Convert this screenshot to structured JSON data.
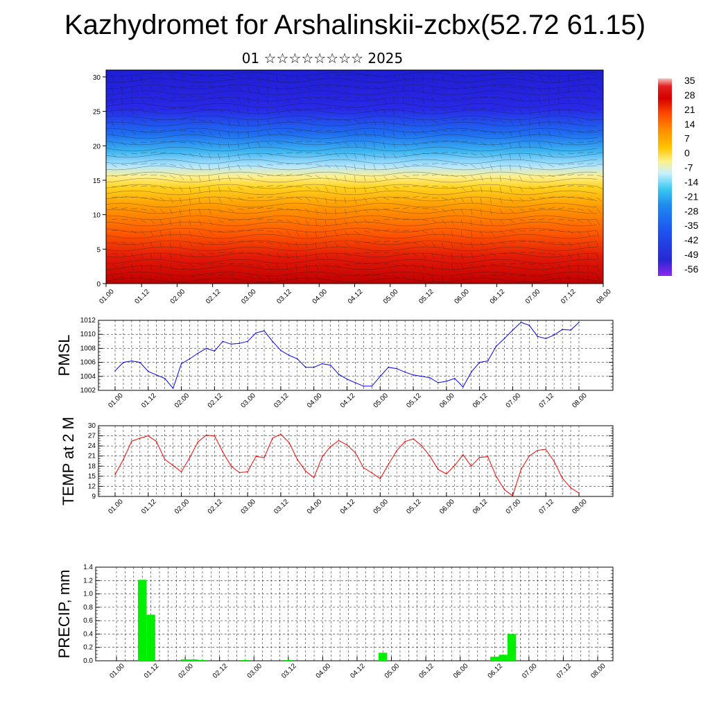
{
  "title": "Kazhydromet for Arshalinskii-zcbx(52.72 61.15)",
  "subtitle": "01 ☆☆☆☆☆☆☆☆ 2025",
  "chart_data": [
    {
      "type": "heatmap",
      "title": "",
      "y_ticks": [
        0,
        5,
        10,
        15,
        20,
        25,
        30
      ],
      "ylim": [
        0,
        31
      ],
      "x_ticks": [
        "01.00",
        "01.12",
        "02.00",
        "02.12",
        "03.00",
        "03.12",
        "04.00",
        "04.12",
        "05.00",
        "05.12",
        "06.00",
        "06.12",
        "07.00",
        "07.12",
        "08.00"
      ],
      "colorbar": {
        "labels": [
          "35",
          "28",
          "21",
          "14",
          "7",
          "0",
          "-7",
          "-14",
          "-21",
          "-28",
          "-35",
          "-42",
          "-49",
          "-56"
        ],
        "colors": [
          "#f5c6c6",
          "#e32020",
          "#d40000",
          "#ff4a00",
          "#ff8c00",
          "#ffc400",
          "#fff08c",
          "#c8f0ff",
          "#3cc8f0",
          "#1e8cf0",
          "#1e50f0",
          "#3232f0",
          "#2828d2",
          "#8c28f0"
        ]
      },
      "description_field": "temperature cross-section with wind barbs"
    },
    {
      "type": "line",
      "ylabel": "PMSL",
      "ylim": [
        1002,
        1012
      ],
      "y_ticks": [
        1002,
        1004,
        1006,
        1008,
        1010,
        1012
      ],
      "x_ticks": [
        "01.00",
        "01.12",
        "02.00",
        "02.12",
        "03.00",
        "03.12",
        "04.00",
        "04.12",
        "05.00",
        "05.12",
        "06.00",
        "06.12",
        "07.00",
        "07.12",
        "08.00"
      ],
      "series": [
        {
          "color": "#0000ff",
          "values": [
            1004.8,
            1006.0,
            1006.2,
            1006.0,
            1004.7,
            1004.2,
            1003.7,
            1002.3,
            1005.8,
            1006.5,
            1007.3,
            1008.0,
            1007.6,
            1009.0,
            1008.6,
            1008.7,
            1009.0,
            1010.2,
            1010.5,
            1009.0,
            1007.7,
            1007.0,
            1006.5,
            1005.3,
            1005.3,
            1005.8,
            1005.6,
            1004.3,
            1003.6,
            1003.1,
            1002.6,
            1002.6,
            1004.0,
            1005.3,
            1005.1,
            1004.6,
            1004.2,
            1004.0,
            1003.8,
            1003.1,
            1003.3,
            1003.7,
            1002.5,
            1004.6,
            1006.0,
            1006.2,
            1008.3,
            1009.4,
            1010.6,
            1011.7,
            1011.3,
            1009.7,
            1009.4,
            1009.9,
            1010.7,
            1010.6,
            1011.7
          ]
        }
      ]
    },
    {
      "type": "line",
      "ylabel": "TEMP at 2 M",
      "ylim": [
        9,
        30
      ],
      "y_ticks": [
        9,
        12,
        15,
        18,
        21,
        24,
        27,
        30
      ],
      "x_ticks": [
        "01.00",
        "01.12",
        "02.00",
        "02.12",
        "03.00",
        "03.12",
        "04.00",
        "04.12",
        "05.00",
        "05.12",
        "06.00",
        "06.12",
        "07.00",
        "07.12",
        "08.00"
      ],
      "series": [
        {
          "color": "#ff0000",
          "values": [
            15.5,
            20.0,
            25.4,
            26.3,
            27.0,
            25.3,
            20.0,
            18.2,
            16.3,
            20.5,
            25.2,
            27.2,
            27.0,
            22.2,
            18.0,
            16.1,
            16.3,
            20.9,
            20.5,
            26.3,
            27.5,
            25.0,
            20.0,
            16.5,
            14.6,
            20.8,
            23.8,
            25.6,
            24.3,
            22.0,
            17.5,
            16.0,
            14.3,
            18.5,
            22.6,
            25.3,
            26.1,
            24.1,
            21.0,
            17.0,
            15.7,
            18.2,
            21.4,
            18.0,
            20.6,
            20.8,
            15.0,
            11.0,
            9.2,
            17.0,
            21.0,
            22.7,
            23.0,
            19.4,
            14.4,
            11.6,
            10.0
          ]
        }
      ]
    },
    {
      "type": "bar",
      "ylabel": "PRECIP, mm",
      "ylim": [
        0,
        1.4
      ],
      "y_ticks": [
        "0.0",
        "0.2",
        "0.4",
        "0.6",
        "0.8",
        "1.0",
        "1.2",
        "1.4"
      ],
      "x_ticks": [
        "01.00",
        "01.12",
        "02.00",
        "02.12",
        "03.00",
        "03.12",
        "04.00",
        "04.12",
        "05.00",
        "05.12",
        "06.00",
        "06.12",
        "07.00",
        "07.12",
        "08.00"
      ],
      "bar_color": "#00ee00",
      "bars": [
        {
          "t": 3,
          "value": 1.21
        },
        {
          "t": 4,
          "value": 0.69
        },
        {
          "t": 8,
          "value": 0.02
        },
        {
          "t": 9,
          "value": 0.02
        },
        {
          "t": 10,
          "value": 0.01
        },
        {
          "t": 15,
          "value": 0.01
        },
        {
          "t": 20,
          "value": 0.01
        },
        {
          "t": 31,
          "value": 0.12
        },
        {
          "t": 44,
          "value": 0.06
        },
        {
          "t": 45,
          "value": 0.09
        },
        {
          "t": 46,
          "value": 0.4
        }
      ]
    }
  ]
}
